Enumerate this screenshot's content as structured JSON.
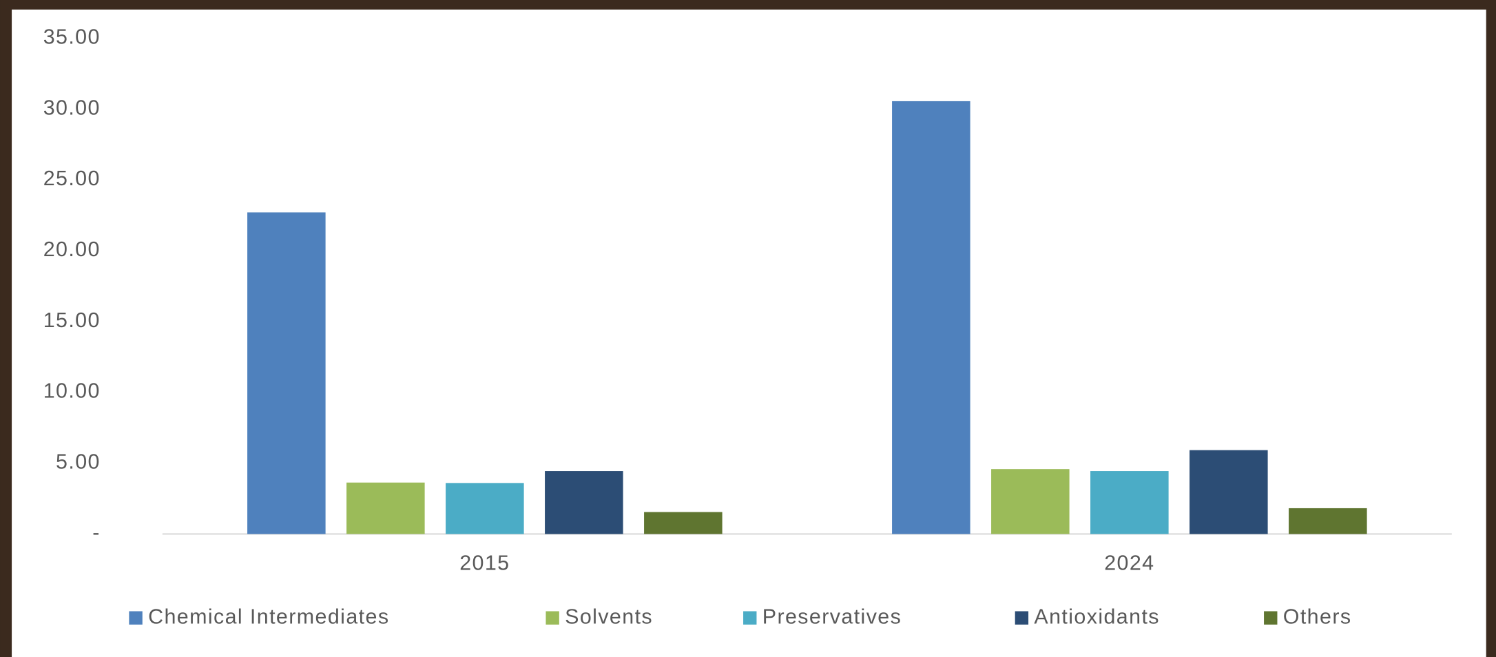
{
  "chart_data": {
    "type": "bar",
    "categories": [
      "2015",
      "2024"
    ],
    "series": [
      {
        "name": "Chemical Intermediates",
        "color": "#4f81bd",
        "values": [
          22.7,
          30.55
        ]
      },
      {
        "name": "Solvents",
        "color": "#9bbb59",
        "values": [
          3.63,
          4.58
        ]
      },
      {
        "name": "Preservatives",
        "color": "#4bacc6",
        "values": [
          3.6,
          4.44
        ]
      },
      {
        "name": "Antioxidants",
        "color": "#2c4d75",
        "values": [
          4.44,
          5.92
        ]
      },
      {
        "name": "Others",
        "color": "#5f7530",
        "values": [
          1.55,
          1.82
        ]
      }
    ],
    "ylim": [
      0,
      35
    ],
    "yticks": [
      {
        "value": 0,
        "label": "-"
      },
      {
        "value": 5,
        "label": "5.00"
      },
      {
        "value": 10,
        "label": "10.00"
      },
      {
        "value": 15,
        "label": "15.00"
      },
      {
        "value": 20,
        "label": "20.00"
      },
      {
        "value": 25,
        "label": "25.00"
      },
      {
        "value": 30,
        "label": "30.00"
      },
      {
        "value": 35,
        "label": "35.00"
      }
    ],
    "grid": false,
    "legend": "bottom"
  }
}
